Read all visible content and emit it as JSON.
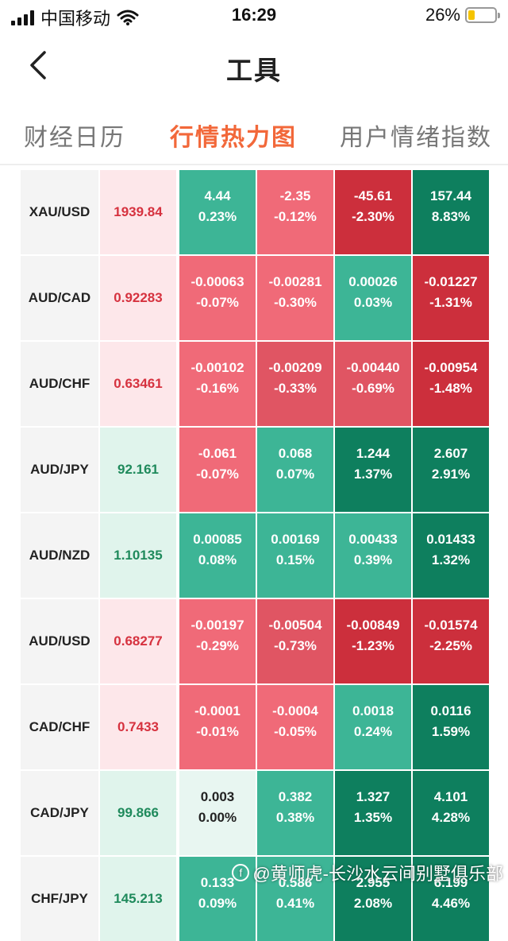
{
  "status_bar": {
    "carrier": "中国移动",
    "time": "16:29",
    "battery": "26%",
    "battery_level": 0.26
  },
  "nav": {
    "title": "工具",
    "back_icon": "chevron-left-icon"
  },
  "tabs": [
    {
      "label": "财经日历",
      "active": false
    },
    {
      "label": "行情热力图",
      "active": true
    },
    {
      "label": "用户情绪指数",
      "active": false
    }
  ],
  "colors": {
    "accent": "#f2683a",
    "strong_up": "#0e7f5e",
    "up": "#3db596",
    "light_up": "#e8f6f1",
    "down": "#f06a78",
    "mid_down": "#e05563",
    "strong_down": "#cc2f3c"
  },
  "rows": [
    {
      "pair": "XAU/USD",
      "price": "1939.84",
      "price_dir": "down",
      "cells": [
        {
          "change": "4.44",
          "pct": "0.23%",
          "level": "up"
        },
        {
          "change": "-2.35",
          "pct": "-0.12%",
          "level": "down"
        },
        {
          "change": "-45.61",
          "pct": "-2.30%",
          "level": "strong_down"
        },
        {
          "change": "157.44",
          "pct": "8.83%",
          "level": "strong_up"
        }
      ]
    },
    {
      "pair": "AUD/CAD",
      "price": "0.92283",
      "price_dir": "down",
      "cells": [
        {
          "change": "-0.00063",
          "pct": "-0.07%",
          "level": "down"
        },
        {
          "change": "-0.00281",
          "pct": "-0.30%",
          "level": "down"
        },
        {
          "change": "0.00026",
          "pct": "0.03%",
          "level": "up"
        },
        {
          "change": "-0.01227",
          "pct": "-1.31%",
          "level": "strong_down"
        }
      ]
    },
    {
      "pair": "AUD/CHF",
      "price": "0.63461",
      "price_dir": "down",
      "cells": [
        {
          "change": "-0.00102",
          "pct": "-0.16%",
          "level": "down"
        },
        {
          "change": "-0.00209",
          "pct": "-0.33%",
          "level": "mid_down"
        },
        {
          "change": "-0.00440",
          "pct": "-0.69%",
          "level": "mid_down"
        },
        {
          "change": "-0.00954",
          "pct": "-1.48%",
          "level": "strong_down"
        }
      ]
    },
    {
      "pair": "AUD/JPY",
      "price": "92.161",
      "price_dir": "up",
      "cells": [
        {
          "change": "-0.061",
          "pct": "-0.07%",
          "level": "down"
        },
        {
          "change": "0.068",
          "pct": "0.07%",
          "level": "up"
        },
        {
          "change": "1.244",
          "pct": "1.37%",
          "level": "strong_up"
        },
        {
          "change": "2.607",
          "pct": "2.91%",
          "level": "strong_up"
        }
      ]
    },
    {
      "pair": "AUD/NZD",
      "price": "1.10135",
      "price_dir": "up",
      "cells": [
        {
          "change": "0.00085",
          "pct": "0.08%",
          "level": "up"
        },
        {
          "change": "0.00169",
          "pct": "0.15%",
          "level": "up"
        },
        {
          "change": "0.00433",
          "pct": "0.39%",
          "level": "up"
        },
        {
          "change": "0.01433",
          "pct": "1.32%",
          "level": "strong_up"
        }
      ]
    },
    {
      "pair": "AUD/USD",
      "price": "0.68277",
      "price_dir": "down",
      "cells": [
        {
          "change": "-0.00197",
          "pct": "-0.29%",
          "level": "down"
        },
        {
          "change": "-0.00504",
          "pct": "-0.73%",
          "level": "mid_down"
        },
        {
          "change": "-0.00849",
          "pct": "-1.23%",
          "level": "strong_down"
        },
        {
          "change": "-0.01574",
          "pct": "-2.25%",
          "level": "strong_down"
        }
      ]
    },
    {
      "pair": "CAD/CHF",
      "price": "0.7433",
      "price_dir": "down",
      "cells": [
        {
          "change": "-0.0001",
          "pct": "-0.01%",
          "level": "down"
        },
        {
          "change": "-0.0004",
          "pct": "-0.05%",
          "level": "down"
        },
        {
          "change": "0.0018",
          "pct": "0.24%",
          "level": "up"
        },
        {
          "change": "0.0116",
          "pct": "1.59%",
          "level": "strong_up"
        }
      ]
    },
    {
      "pair": "CAD/JPY",
      "price": "99.866",
      "price_dir": "up",
      "cells": [
        {
          "change": "0.003",
          "pct": "0.00%",
          "level": "light_up"
        },
        {
          "change": "0.382",
          "pct": "0.38%",
          "level": "up"
        },
        {
          "change": "1.327",
          "pct": "1.35%",
          "level": "strong_up"
        },
        {
          "change": "4.101",
          "pct": "4.28%",
          "level": "strong_up"
        }
      ]
    },
    {
      "pair": "CHF/JPY",
      "price": "145.213",
      "price_dir": "up",
      "cells": [
        {
          "change": "0.133",
          "pct": "0.09%",
          "level": "up"
        },
        {
          "change": "0.586",
          "pct": "0.41%",
          "level": "up"
        },
        {
          "change": "2.955",
          "pct": "2.08%",
          "level": "strong_up"
        },
        {
          "change": "6.199",
          "pct": "4.46%",
          "level": "strong_up"
        }
      ]
    }
  ],
  "watermark": "@黄师虎-长沙水云间别墅俱乐部"
}
